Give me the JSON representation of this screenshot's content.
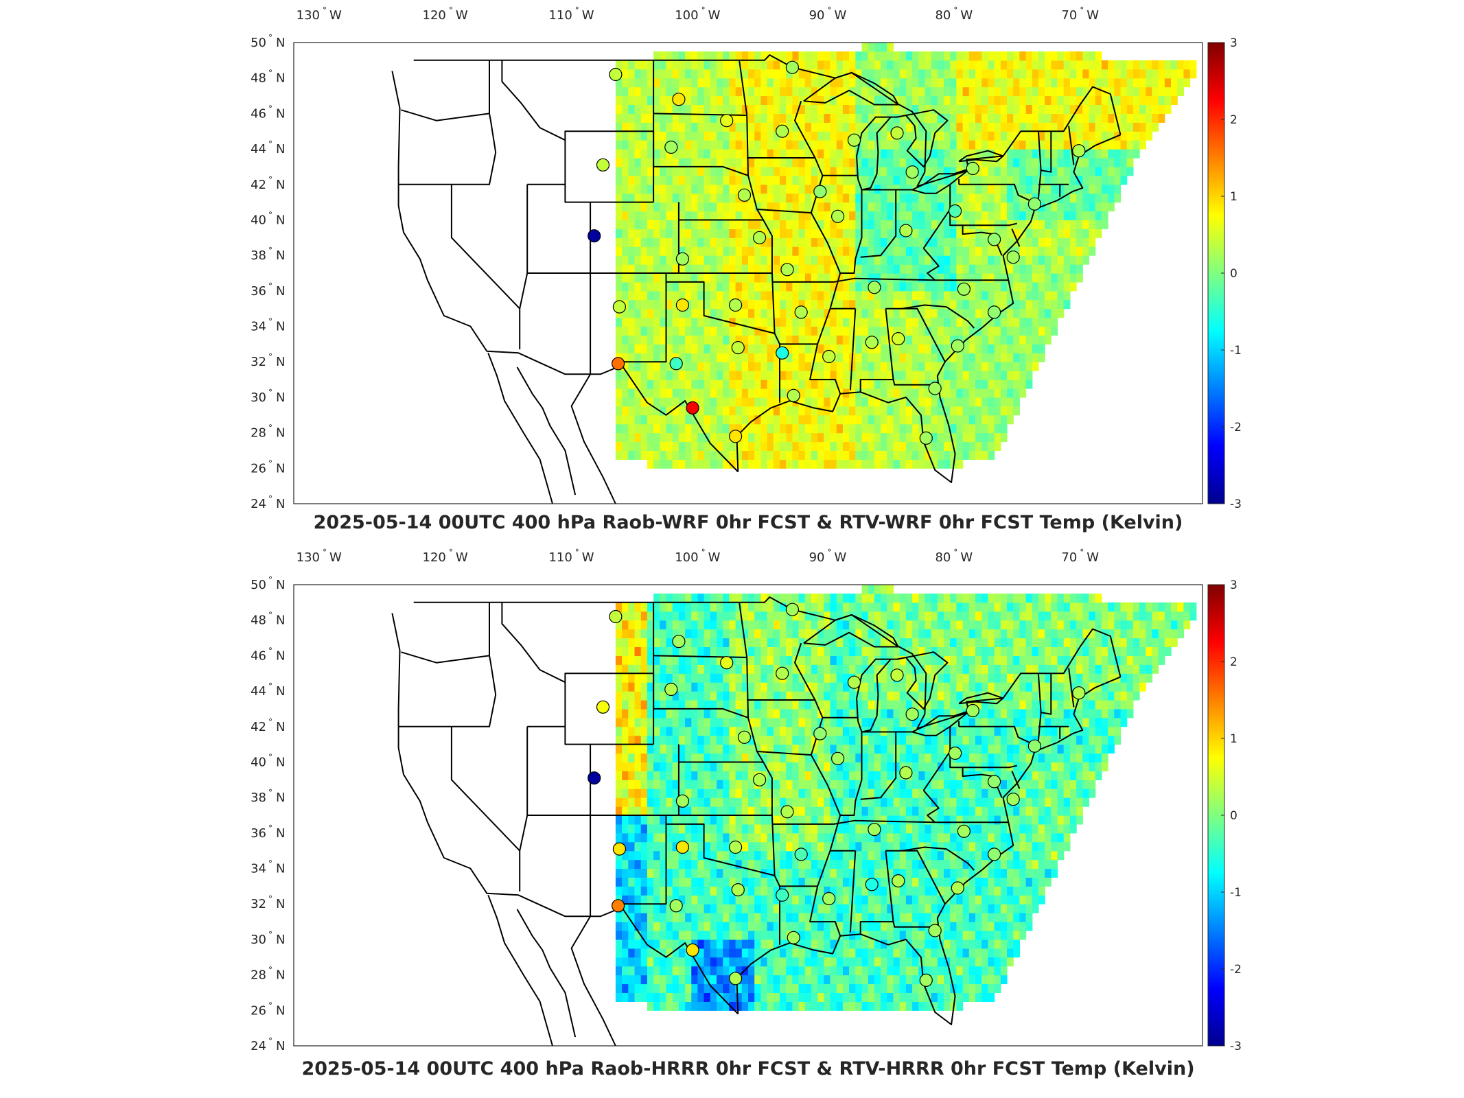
{
  "maps": [
    {
      "title": "2025-05-14 00UTC 400 hPa Raob-WRF 0hr FCST & RTV-WRF 0hr FCST Temp (Kelvin)",
      "field_style": "wrf",
      "stations": [
        {
          "lon": -107.0,
          "lat": 48.2,
          "value": 0.4
        },
        {
          "lon": -102.0,
          "lat": 46.8,
          "value": 0.9
        },
        {
          "lon": -98.2,
          "lat": 45.6,
          "value": 0.6
        },
        {
          "lon": -93.8,
          "lat": 45.0,
          "value": 0.3
        },
        {
          "lon": -102.6,
          "lat": 44.1,
          "value": 0.2
        },
        {
          "lon": -108.0,
          "lat": 43.1,
          "value": 0.4
        },
        {
          "lon": -96.8,
          "lat": 41.4,
          "value": 0.3
        },
        {
          "lon": -90.8,
          "lat": 41.6,
          "value": 0.1
        },
        {
          "lon": -108.7,
          "lat": 39.1,
          "value": -2.9
        },
        {
          "lon": -101.7,
          "lat": 37.8,
          "value": 0.2
        },
        {
          "lon": -95.6,
          "lat": 39.0,
          "value": 0.3
        },
        {
          "lon": -89.4,
          "lat": 40.2,
          "value": 0.3
        },
        {
          "lon": -93.4,
          "lat": 37.2,
          "value": 0.3
        },
        {
          "lon": -106.7,
          "lat": 35.1,
          "value": 0.4
        },
        {
          "lon": -101.7,
          "lat": 35.2,
          "value": 0.9
        },
        {
          "lon": -97.5,
          "lat": 35.2,
          "value": 0.3
        },
        {
          "lon": -92.3,
          "lat": 34.8,
          "value": 0.3
        },
        {
          "lon": -97.3,
          "lat": 32.8,
          "value": 0.4
        },
        {
          "lon": -106.8,
          "lat": 31.9,
          "value": 1.6
        },
        {
          "lon": -102.2,
          "lat": 31.9,
          "value": -0.4
        },
        {
          "lon": -93.8,
          "lat": 32.5,
          "value": -0.6
        },
        {
          "lon": -90.1,
          "lat": 32.3,
          "value": 0.4
        },
        {
          "lon": -86.7,
          "lat": 33.1,
          "value": 0.3
        },
        {
          "lon": -84.6,
          "lat": 33.3,
          "value": 0.5
        },
        {
          "lon": -100.9,
          "lat": 29.4,
          "value": 2.3
        },
        {
          "lon": -97.5,
          "lat": 27.8,
          "value": 0.9
        },
        {
          "lon": -92.9,
          "lat": 30.1,
          "value": 0.3
        },
        {
          "lon": -81.7,
          "lat": 30.5,
          "value": 0.2
        },
        {
          "lon": -82.4,
          "lat": 27.7,
          "value": 0.2
        },
        {
          "lon": -86.5,
          "lat": 36.2,
          "value": 0.2
        },
        {
          "lon": -84.0,
          "lat": 39.4,
          "value": 0.3
        },
        {
          "lon": -80.1,
          "lat": 40.5,
          "value": -0.3
        },
        {
          "lon": -83.5,
          "lat": 42.7,
          "value": 0.2
        },
        {
          "lon": -84.7,
          "lat": 44.9,
          "value": 0.4
        },
        {
          "lon": -88.1,
          "lat": 44.5,
          "value": 0.3
        },
        {
          "lon": -93.0,
          "lat": 48.6,
          "value": 0.2
        },
        {
          "lon": -79.9,
          "lat": 32.9,
          "value": 0.2
        },
        {
          "lon": -79.4,
          "lat": 36.1,
          "value": 0.2
        },
        {
          "lon": -77.0,
          "lat": 38.9,
          "value": 0.1
        },
        {
          "lon": -73.8,
          "lat": 40.9,
          "value": 0.1
        },
        {
          "lon": -70.3,
          "lat": 43.9,
          "value": 0.3
        },
        {
          "lon": -75.5,
          "lat": 37.9,
          "value": 0.2
        },
        {
          "lon": -78.7,
          "lat": 42.9,
          "value": 0.2
        },
        {
          "lon": -77.0,
          "lat": 34.8,
          "value": 0.1
        }
      ]
    },
    {
      "title": "2025-05-14 00UTC 400 hPa Raob-HRRR 0hr FCST & RTV-HRRR 0hr FCST Temp (Kelvin)",
      "field_style": "hrrr",
      "stations": [
        {
          "lon": -107.0,
          "lat": 48.2,
          "value": 0.4
        },
        {
          "lon": -102.0,
          "lat": 46.8,
          "value": 0.2
        },
        {
          "lon": -98.2,
          "lat": 45.6,
          "value": 0.6
        },
        {
          "lon": -93.8,
          "lat": 45.0,
          "value": 0.3
        },
        {
          "lon": -102.6,
          "lat": 44.1,
          "value": 0.3
        },
        {
          "lon": -108.0,
          "lat": 43.1,
          "value": 0.7
        },
        {
          "lon": -96.8,
          "lat": 41.4,
          "value": 0.3
        },
        {
          "lon": -90.8,
          "lat": 41.6,
          "value": 0.1
        },
        {
          "lon": -108.7,
          "lat": 39.1,
          "value": -2.9
        },
        {
          "lon": -101.7,
          "lat": 37.8,
          "value": 0.2
        },
        {
          "lon": -95.6,
          "lat": 39.0,
          "value": 0.3
        },
        {
          "lon": -89.4,
          "lat": 40.2,
          "value": 0.2
        },
        {
          "lon": -93.4,
          "lat": 37.2,
          "value": 0.3
        },
        {
          "lon": -106.7,
          "lat": 35.1,
          "value": 0.9
        },
        {
          "lon": -101.7,
          "lat": 35.2,
          "value": 0.9
        },
        {
          "lon": -97.5,
          "lat": 35.2,
          "value": 0.3
        },
        {
          "lon": -92.3,
          "lat": 34.8,
          "value": -0.3
        },
        {
          "lon": -97.3,
          "lat": 32.8,
          "value": 0.3
        },
        {
          "lon": -106.8,
          "lat": 31.9,
          "value": 1.5
        },
        {
          "lon": -102.2,
          "lat": 31.9,
          "value": 0.2
        },
        {
          "lon": -93.8,
          "lat": 32.5,
          "value": -0.4
        },
        {
          "lon": -90.1,
          "lat": 32.3,
          "value": 0.2
        },
        {
          "lon": -86.7,
          "lat": 33.1,
          "value": -0.6
        },
        {
          "lon": -84.6,
          "lat": 33.3,
          "value": 0.3
        },
        {
          "lon": -100.9,
          "lat": 29.4,
          "value": 0.9
        },
        {
          "lon": -97.5,
          "lat": 27.8,
          "value": 0.3
        },
        {
          "lon": -92.9,
          "lat": 30.1,
          "value": 0.2
        },
        {
          "lon": -81.7,
          "lat": 30.5,
          "value": 0.2
        },
        {
          "lon": -82.4,
          "lat": 27.7,
          "value": 0.2
        },
        {
          "lon": -86.5,
          "lat": 36.2,
          "value": 0.2
        },
        {
          "lon": -84.0,
          "lat": 39.4,
          "value": 0.3
        },
        {
          "lon": -80.1,
          "lat": 40.5,
          "value": 0.2
        },
        {
          "lon": -83.5,
          "lat": 42.7,
          "value": 0.2
        },
        {
          "lon": -84.7,
          "lat": 44.9,
          "value": 0.4
        },
        {
          "lon": -88.1,
          "lat": 44.5,
          "value": 0.3
        },
        {
          "lon": -93.0,
          "lat": 48.6,
          "value": 0.2
        },
        {
          "lon": -79.9,
          "lat": 32.9,
          "value": 0.3
        },
        {
          "lon": -79.4,
          "lat": 36.1,
          "value": 0.2
        },
        {
          "lon": -77.0,
          "lat": 38.9,
          "value": 0.1
        },
        {
          "lon": -73.8,
          "lat": 40.9,
          "value": 0.1
        },
        {
          "lon": -70.3,
          "lat": 43.9,
          "value": 0.3
        },
        {
          "lon": -75.5,
          "lat": 37.9,
          "value": 0.2
        },
        {
          "lon": -78.7,
          "lat": 42.9,
          "value": 0.2
        },
        {
          "lon": -77.0,
          "lat": 34.8,
          "value": 0.1
        }
      ]
    }
  ],
  "lon_ticks": [
    {
      "value": -130,
      "label": "130",
      "hemi": "W"
    },
    {
      "value": -120,
      "label": "120",
      "hemi": "W"
    },
    {
      "value": -110,
      "label": "110",
      "hemi": "W"
    },
    {
      "value": -100,
      "label": "100",
      "hemi": "W"
    },
    {
      "value": -90,
      "label": "90",
      "hemi": "W"
    },
    {
      "value": -80,
      "label": "80",
      "hemi": "W"
    },
    {
      "value": -70,
      "label": "70",
      "hemi": "W"
    }
  ],
  "lat_ticks": [
    {
      "value": 50,
      "label": "50",
      "hemi": "N"
    },
    {
      "value": 48,
      "label": "48",
      "hemi": "N"
    },
    {
      "value": 46,
      "label": "46",
      "hemi": "N"
    },
    {
      "value": 44,
      "label": "44",
      "hemi": "N"
    },
    {
      "value": 42,
      "label": "42",
      "hemi": "N"
    },
    {
      "value": 40,
      "label": "40",
      "hemi": "N"
    },
    {
      "value": 38,
      "label": "38",
      "hemi": "N"
    },
    {
      "value": 36,
      "label": "36",
      "hemi": "N"
    },
    {
      "value": 34,
      "label": "34",
      "hemi": "N"
    },
    {
      "value": 32,
      "label": "32",
      "hemi": "N"
    },
    {
      "value": 30,
      "label": "30",
      "hemi": "N"
    },
    {
      "value": 28,
      "label": "28",
      "hemi": "N"
    },
    {
      "value": 26,
      "label": "26",
      "hemi": "N"
    },
    {
      "value": 24,
      "label": "24",
      "hemi": "N"
    }
  ],
  "colorbar": {
    "min": -3,
    "max": 3,
    "ticks": [
      {
        "value": 3,
        "label": "3"
      },
      {
        "value": 2,
        "label": "2"
      },
      {
        "value": 1,
        "label": "1"
      },
      {
        "value": 0,
        "label": "0"
      },
      {
        "value": -1,
        "label": "-1"
      },
      {
        "value": -2,
        "label": "-2"
      },
      {
        "value": -3,
        "label": "-3"
      }
    ],
    "colors": [
      "#00008f",
      "#0000ff",
      "#0080ff",
      "#00ffff",
      "#80ff80",
      "#ffff00",
      "#ff8000",
      "#ff0000",
      "#800000"
    ]
  }
}
